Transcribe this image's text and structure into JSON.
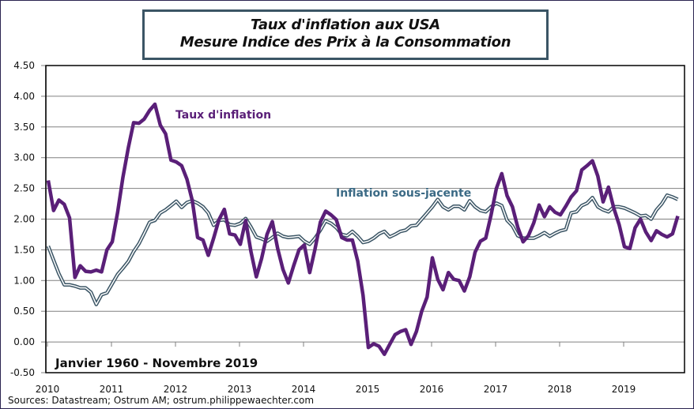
{
  "title": {
    "line1": "Taux d'inflation aux USA",
    "line2": "Mesure Indice des Prix à la Consommation"
  },
  "source": "Sources: Datastream; Ostrum AM;  ostrum.philippewaechter.com",
  "colors": {
    "headline": "#5a1f78",
    "core": "#3b5565",
    "core_label": "#3b6a85",
    "grid": "#808080",
    "axis": "#000000"
  },
  "chart_data": {
    "type": "line",
    "title": "Taux d'inflation aux USA — Mesure Indice des Prix à la Consommation",
    "xlabel": "",
    "ylabel": "",
    "period_annotation": "Janvier 1960 - Novembre 2019",
    "x_start": "2010-01",
    "frequency": "monthly",
    "x_ticks": [
      "2010",
      "2011",
      "2012",
      "2013",
      "2014",
      "2015",
      "2016",
      "2017",
      "2018",
      "2019"
    ],
    "ylim": [
      -0.5,
      4.5
    ],
    "y_ticks": [
      "4.50",
      "4.00",
      "3.50",
      "3.00",
      "2.50",
      "2.00",
      "1.50",
      "1.00",
      "0.50",
      "0.00",
      "-0.50"
    ],
    "y_tick_values": [
      4.5,
      4.0,
      3.5,
      3.0,
      2.5,
      2.0,
      1.5,
      1.0,
      0.5,
      0.0,
      -0.5
    ],
    "grid": true,
    "legend": "inline labels",
    "series": [
      {
        "name": "Taux d'inflation",
        "values": [
          2.63,
          2.14,
          2.31,
          2.24,
          2.02,
          1.05,
          1.24,
          1.15,
          1.14,
          1.17,
          1.14,
          1.5,
          1.63,
          2.11,
          2.68,
          3.16,
          3.57,
          3.56,
          3.63,
          3.77,
          3.87,
          3.53,
          3.39,
          2.96,
          2.93,
          2.87,
          2.65,
          2.3,
          1.7,
          1.66,
          1.41,
          1.69,
          1.99,
          2.16,
          1.76,
          1.74,
          1.59,
          1.98,
          1.47,
          1.06,
          1.36,
          1.75,
          1.96,
          1.52,
          1.18,
          0.96,
          1.24,
          1.5,
          1.58,
          1.13,
          1.51,
          1.95,
          2.13,
          2.07,
          1.99,
          1.7,
          1.66,
          1.66,
          1.32,
          0.76,
          -0.09,
          -0.03,
          -0.07,
          -0.2,
          -0.04,
          0.12,
          0.17,
          0.2,
          -0.04,
          0.17,
          0.5,
          0.73,
          1.37,
          1.02,
          0.85,
          1.13,
          1.02,
          1.0,
          0.83,
          1.06,
          1.46,
          1.64,
          1.69,
          2.07,
          2.5,
          2.74,
          2.38,
          2.2,
          1.87,
          1.63,
          1.73,
          1.94,
          2.23,
          2.04,
          2.2,
          2.11,
          2.07,
          2.21,
          2.36,
          2.46,
          2.8,
          2.87,
          2.95,
          2.7,
          2.28,
          2.52,
          2.18,
          1.91,
          1.55,
          1.52,
          1.86,
          2.0,
          1.79,
          1.65,
          1.81,
          1.75,
          1.71,
          1.76,
          2.05
        ]
      },
      {
        "name": "Inflation sous-jacente",
        "values": [
          1.56,
          1.33,
          1.11,
          0.93,
          0.93,
          0.91,
          0.88,
          0.88,
          0.81,
          0.61,
          0.77,
          0.8,
          0.95,
          1.1,
          1.2,
          1.31,
          1.47,
          1.6,
          1.77,
          1.95,
          1.98,
          2.1,
          2.15,
          2.22,
          2.29,
          2.19,
          2.27,
          2.3,
          2.26,
          2.2,
          2.1,
          1.9,
          1.98,
          1.99,
          1.91,
          1.9,
          1.93,
          2.01,
          1.87,
          1.71,
          1.68,
          1.64,
          1.7,
          1.77,
          1.72,
          1.7,
          1.71,
          1.72,
          1.64,
          1.59,
          1.69,
          1.82,
          1.97,
          1.93,
          1.86,
          1.75,
          1.73,
          1.8,
          1.72,
          1.62,
          1.64,
          1.69,
          1.76,
          1.8,
          1.71,
          1.75,
          1.8,
          1.82,
          1.89,
          1.9,
          2.0,
          2.1,
          2.2,
          2.32,
          2.2,
          2.15,
          2.21,
          2.21,
          2.15,
          2.3,
          2.2,
          2.14,
          2.12,
          2.2,
          2.26,
          2.22,
          1.98,
          1.89,
          1.73,
          1.69,
          1.69,
          1.69,
          1.73,
          1.78,
          1.72,
          1.77,
          1.81,
          1.83,
          2.1,
          2.12,
          2.22,
          2.26,
          2.35,
          2.2,
          2.15,
          2.12,
          2.2,
          2.2,
          2.18,
          2.14,
          2.1,
          2.05,
          2.06,
          2.0,
          2.15,
          2.25,
          2.39,
          2.36,
          2.32
        ]
      }
    ]
  }
}
